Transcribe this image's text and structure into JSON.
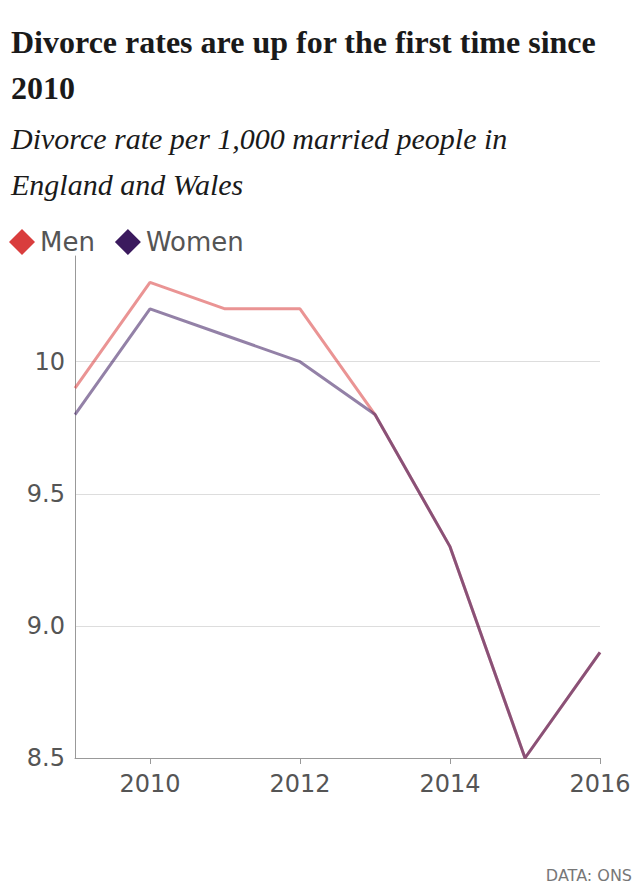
{
  "chart_data": {
    "type": "line",
    "title": "Divorce rates are up for the first time since 2010",
    "subtitle": "Divorce rate per 1,000 married people in England and Wales",
    "source": "DATA: ONS",
    "x": [
      2009,
      2010,
      2011,
      2012,
      2013,
      2014,
      2015,
      2016
    ],
    "series": [
      {
        "name": "Men",
        "color": "#d93d3d",
        "values": [
          9.9,
          10.3,
          10.2,
          10.2,
          9.8,
          9.3,
          8.5,
          8.9
        ]
      },
      {
        "name": "Women",
        "color": "#3b1a5e",
        "values": [
          9.8,
          10.2,
          10.1,
          10.0,
          9.8,
          9.3,
          8.5,
          8.9
        ]
      }
    ],
    "xlim": [
      2009,
      2016
    ],
    "xticks": [
      2010,
      2012,
      2014,
      2016
    ],
    "ylim": [
      8.5,
      10.4
    ],
    "yticks": [
      8.5,
      {
        "value": 9,
        "label": "9.0"
      },
      9.5,
      10
    ],
    "grid": true,
    "legend": "top-left"
  }
}
